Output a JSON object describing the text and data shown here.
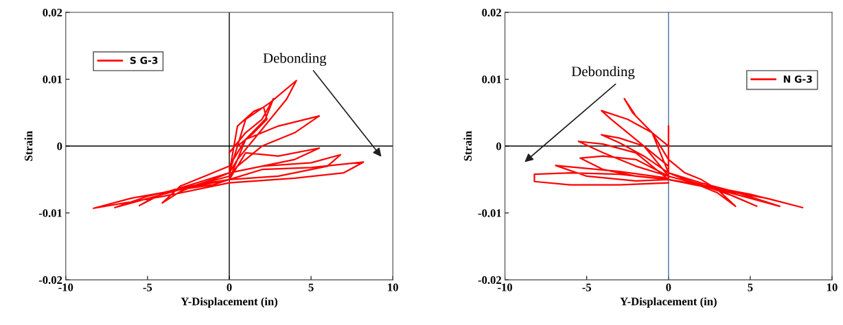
{
  "chart_data": [
    {
      "type": "line",
      "xlabel": "Y-Displacement (in)",
      "ylabel": "Strain",
      "xlim": [
        -10,
        10
      ],
      "xticks": [
        -10,
        -5,
        0,
        5,
        10
      ],
      "ylim": [
        -0.02,
        0.02
      ],
      "yticks": [
        -0.02,
        -0.01,
        0,
        0.01,
        0.02
      ],
      "grid": false,
      "legend": "top left",
      "marker": "none",
      "line_style": "solid",
      "ref_lines": [
        {
          "axis": "x",
          "value": 0,
          "color": "#000000"
        },
        {
          "axis": "y",
          "value": 0,
          "color": "#000000"
        }
      ],
      "annotations": [
        "Debonding"
      ],
      "series": [
        {
          "name": "S G-3",
          "color": "#ff0000",
          "x": [
            0,
            1,
            2,
            2.7,
            2.2,
            1,
            0,
            -1,
            -2,
            -3,
            -4.1,
            -3,
            -2,
            -1,
            0,
            0.5,
            1.5,
            2.1,
            2.3,
            1.5,
            0.5,
            0,
            1,
            2.5,
            4.1,
            3.5,
            2.5,
            1.5,
            0.5,
            0,
            -2,
            -4,
            -5.5,
            -4.5,
            -3,
            -1,
            0,
            1,
            3,
            5.5,
            4,
            2,
            0.5,
            0,
            -3,
            -7,
            -5,
            -2,
            0,
            1,
            3,
            5.5,
            4,
            2,
            0,
            2,
            5,
            6.8,
            6,
            3,
            0,
            2,
            5,
            8.2,
            7,
            4,
            0,
            -4,
            -8.3,
            -6,
            -3,
            -1,
            0
          ],
          "values": [
            -0.001,
            0.002,
            0.004,
            0.0071,
            0.004,
            0.001,
            -0.003,
            -0.004,
            -0.005,
            -0.006,
            -0.0085,
            -0.0068,
            -0.0058,
            -0.005,
            -0.004,
            0.003,
            0.0052,
            0.0058,
            0.004,
            0.002,
            0,
            -0.004,
            0.004,
            0.0065,
            0.0098,
            0.007,
            0.004,
            0.001,
            -0.002,
            -0.004,
            -0.0055,
            -0.007,
            -0.0089,
            -0.0075,
            -0.0065,
            -0.0055,
            -0.005,
            0.001,
            0.003,
            0.0045,
            0.002,
            0.0,
            -0.003,
            -0.0045,
            -0.0065,
            -0.0092,
            -0.0075,
            -0.0058,
            -0.005,
            -0.001,
            -0.0015,
            -0.0003,
            -0.002,
            -0.003,
            -0.004,
            -0.003,
            -0.0025,
            -0.0013,
            -0.003,
            -0.0045,
            -0.005,
            -0.0035,
            -0.0032,
            -0.0024,
            -0.004,
            -0.0048,
            -0.0055,
            -0.0075,
            -0.0093,
            -0.0078,
            -0.0065,
            -0.0058,
            -0.005
          ]
        }
      ]
    },
    {
      "type": "line",
      "xlabel": "Y-Displacement (in)",
      "ylabel": "Strain",
      "xlim": [
        -10,
        10
      ],
      "xticks": [
        -10,
        -5,
        0,
        5,
        10
      ],
      "ylim": [
        -0.02,
        0.02
      ],
      "yticks": [
        -0.02,
        -0.01,
        0,
        0.01,
        0.02
      ],
      "grid": false,
      "legend": "top right",
      "marker": "none",
      "line_style": "solid",
      "ref_lines": [
        {
          "axis": "x",
          "value": 0,
          "color": "#4a6fa5"
        },
        {
          "axis": "y",
          "value": 0,
          "color": "#000000"
        }
      ],
      "annotations": [
        "Debonding"
      ],
      "series": [
        {
          "name": "N G-3",
          "color": "#ff0000",
          "x": [
            0,
            0,
            0,
            -1,
            -2,
            -2.7,
            -2.2,
            -1,
            0,
            1,
            2,
            3,
            4.1,
            3,
            2,
            1,
            0,
            -1,
            -2.5,
            -4.1,
            -3.5,
            -2,
            -1,
            0,
            0,
            1,
            3,
            5.4,
            4,
            2,
            0,
            -1.5,
            -3,
            -4.1,
            -3,
            -1.5,
            0,
            2,
            4,
            6.8,
            5,
            3,
            1,
            0,
            -2,
            -4,
            -5.5,
            -4,
            -2,
            0,
            -2,
            -4,
            -5.4,
            -4,
            -2,
            0,
            0,
            -3,
            -6.9,
            -5,
            -2,
            0,
            2,
            5,
            8.2,
            6,
            3,
            1,
            0,
            -3,
            -6,
            -8.2,
            -8.2,
            -6,
            -3,
            0
          ],
          "values": [
            0.003,
            -0.005,
            0,
            0.002,
            0.0045,
            0.0071,
            0.005,
            0.002,
            -0.002,
            -0.004,
            -0.005,
            -0.0065,
            -0.009,
            -0.007,
            -0.006,
            -0.005,
            -0.004,
            0.002,
            0.004,
            0.0053,
            0.004,
            0.001,
            -0.001,
            -0.003,
            -0.004,
            -0.005,
            -0.0065,
            -0.009,
            -0.0075,
            -0.0058,
            -0.0045,
            0.0,
            0.0012,
            0.0017,
            0.0005,
            -0.0015,
            -0.004,
            -0.0055,
            -0.0068,
            -0.009,
            -0.0078,
            -0.0065,
            -0.0055,
            -0.005,
            -0.001,
            0.0003,
            0.0007,
            -0.001,
            -0.003,
            -0.0045,
            -0.002,
            -0.0015,
            -0.0018,
            -0.0035,
            -0.0045,
            -0.005,
            -0.0048,
            -0.0038,
            -0.0029,
            -0.0045,
            -0.0052,
            -0.005,
            -0.0058,
            -0.0072,
            -0.0092,
            -0.0078,
            -0.0065,
            -0.0055,
            -0.005,
            -0.0042,
            -0.004,
            -0.0042,
            -0.0053,
            -0.0058,
            -0.0058,
            -0.0055
          ]
        }
      ]
    }
  ]
}
